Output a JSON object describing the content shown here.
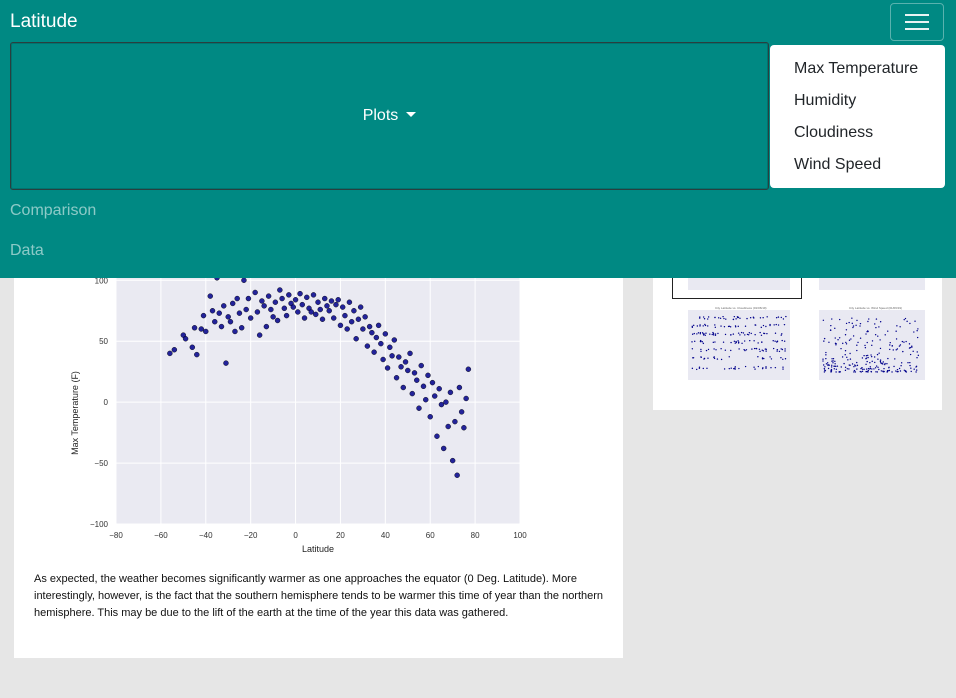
{
  "navbar": {
    "brand": "Latitude",
    "plots_label": "Plots",
    "dropdown_items": [
      "Max Temperature",
      "Humidity",
      "Cloudiness",
      "Wind Speed"
    ],
    "links": [
      "Comparison",
      "Data"
    ],
    "colors": {
      "bar": "#008983",
      "link_muted": "rgba(255,255,255,0.55)"
    }
  },
  "main": {
    "description": "As expected, the weather becomes significantly warmer as one approaches the equator (0 Deg. Latitude). More interestingly, however, is the fact that the southern hemisphere tends to be warmer this time of year than the northern hemisphere. This may be due to the lift of the earth at the time of the year this data was gathered."
  },
  "chart_data": {
    "type": "scatter",
    "xlabel": "Latitude",
    "ylabel": "Max Temperature (F)",
    "xlim": [
      -80,
      100
    ],
    "ylim": [
      -100,
      115
    ],
    "xticks": [
      -80,
      -60,
      -40,
      -20,
      0,
      20,
      40,
      60,
      80,
      100
    ],
    "yticks": [
      100,
      50,
      0,
      -50,
      -100
    ],
    "grid": true,
    "point_color": "#00008b",
    "points": [
      [
        -56,
        40
      ],
      [
        -54,
        43
      ],
      [
        -50,
        55
      ],
      [
        -49,
        52
      ],
      [
        -46,
        45
      ],
      [
        -45,
        61
      ],
      [
        -44,
        39
      ],
      [
        -42,
        60
      ],
      [
        -41,
        71
      ],
      [
        -40,
        58
      ],
      [
        -38,
        87
      ],
      [
        -37,
        75
      ],
      [
        -36,
        66
      ],
      [
        -35,
        102
      ],
      [
        -34,
        73
      ],
      [
        -33,
        62
      ],
      [
        -32,
        79
      ],
      [
        -31,
        32
      ],
      [
        -30,
        70
      ],
      [
        -29,
        66
      ],
      [
        -28,
        81
      ],
      [
        -27,
        58
      ],
      [
        -26,
        85
      ],
      [
        -25,
        73
      ],
      [
        -24,
        61
      ],
      [
        -23,
        100
      ],
      [
        -22,
        76
      ],
      [
        -21,
        85
      ],
      [
        -20,
        69
      ],
      [
        -19,
        112
      ],
      [
        -18,
        90
      ],
      [
        -17,
        74
      ],
      [
        -16,
        55
      ],
      [
        -15,
        83
      ],
      [
        -14,
        79
      ],
      [
        -13,
        62
      ],
      [
        -12,
        87
      ],
      [
        -11,
        76
      ],
      [
        -10,
        70
      ],
      [
        -9,
        82
      ],
      [
        -8,
        67
      ],
      [
        -7,
        92
      ],
      [
        -6,
        85
      ],
      [
        -5,
        77
      ],
      [
        -4,
        71
      ],
      [
        -3,
        88
      ],
      [
        -2,
        81
      ],
      [
        -1,
        78
      ],
      [
        0,
        84
      ],
      [
        1,
        74
      ],
      [
        2,
        89
      ],
      [
        3,
        80
      ],
      [
        4,
        69
      ],
      [
        5,
        86
      ],
      [
        6,
        77
      ],
      [
        7,
        74
      ],
      [
        8,
        88
      ],
      [
        9,
        72
      ],
      [
        10,
        82
      ],
      [
        11,
        76
      ],
      [
        12,
        68
      ],
      [
        13,
        85
      ],
      [
        14,
        79
      ],
      [
        15,
        75
      ],
      [
        16,
        83
      ],
      [
        17,
        69
      ],
      [
        18,
        80
      ],
      [
        19,
        84
      ],
      [
        20,
        63
      ],
      [
        21,
        78
      ],
      [
        22,
        71
      ],
      [
        23,
        60
      ],
      [
        24,
        82
      ],
      [
        25,
        66
      ],
      [
        26,
        75
      ],
      [
        27,
        52
      ],
      [
        28,
        68
      ],
      [
        29,
        78
      ],
      [
        30,
        60
      ],
      [
        31,
        70
      ],
      [
        32,
        46
      ],
      [
        33,
        62
      ],
      [
        34,
        57
      ],
      [
        35,
        41
      ],
      [
        36,
        53
      ],
      [
        37,
        63
      ],
      [
        38,
        48
      ],
      [
        39,
        35
      ],
      [
        40,
        56
      ],
      [
        41,
        28
      ],
      [
        42,
        45
      ],
      [
        43,
        38
      ],
      [
        44,
        51
      ],
      [
        45,
        20
      ],
      [
        46,
        37
      ],
      [
        47,
        29
      ],
      [
        48,
        12
      ],
      [
        49,
        33
      ],
      [
        50,
        26
      ],
      [
        51,
        40
      ],
      [
        52,
        7
      ],
      [
        53,
        24
      ],
      [
        54,
        18
      ],
      [
        55,
        -5
      ],
      [
        56,
        30
      ],
      [
        57,
        13
      ],
      [
        58,
        2
      ],
      [
        59,
        22
      ],
      [
        60,
        -12
      ],
      [
        61,
        16
      ],
      [
        62,
        5
      ],
      [
        63,
        -28
      ],
      [
        64,
        11
      ],
      [
        65,
        -2
      ],
      [
        66,
        -38
      ],
      [
        67,
        0
      ],
      [
        68,
        -20
      ],
      [
        69,
        8
      ],
      [
        70,
        -48
      ],
      [
        71,
        -16
      ],
      [
        72,
        -60
      ],
      [
        73,
        12
      ],
      [
        74,
        -8
      ],
      [
        75,
        -21
      ],
      [
        76,
        3
      ],
      [
        77,
        27
      ]
    ]
  },
  "side": {
    "thumb_titles": [
      "City Latitude vs. Max Temperature (01/06/19)",
      "City Latitude vs. Humidity (01/06/19)",
      "City Latitude vs. Cloudiness (01/06/19)",
      "City Latitude vs. Wind Speed (01/06/19)"
    ]
  }
}
